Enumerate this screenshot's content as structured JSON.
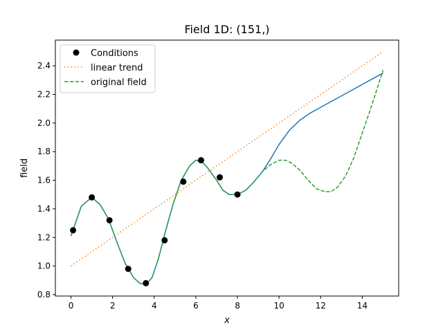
{
  "chart_data": {
    "type": "line",
    "title": "Field 1D: (151,)",
    "xlabel": "x",
    "ylabel": "field",
    "xlim": [
      -0.75,
      15.75
    ],
    "ylim": [
      0.79,
      2.58
    ],
    "xticks": [
      0,
      2,
      4,
      6,
      8,
      10,
      12,
      14
    ],
    "yticks": [
      0.8,
      1.0,
      1.2,
      1.4,
      1.6,
      1.8,
      2.0,
      2.2,
      2.4
    ],
    "grid": false,
    "legend_position": "top-left",
    "legend": [
      {
        "label": "Conditions",
        "style": "marker",
        "color": "#000000"
      },
      {
        "label": "linear trend",
        "style": "dotted",
        "color": "#ff7f0e"
      },
      {
        "label": "original field",
        "style": "dashed",
        "color": "#2ca02c"
      }
    ],
    "series": [
      {
        "style": "solid",
        "color": "#1f77b4",
        "x": [
          0,
          0.5,
          1,
          1.4,
          1.8,
          2.2,
          2.6,
          3.0,
          3.3,
          3.6,
          3.9,
          4.2,
          4.5,
          4.9,
          5.3,
          5.7,
          6.0,
          6.3,
          6.6,
          7.0,
          7.3,
          7.6,
          8.0,
          8.4,
          8.8,
          9.2,
          9.6,
          10.0,
          10.5,
          11.0,
          11.5,
          12.0,
          12.5,
          13.0,
          13.5,
          14.0,
          14.5,
          15.0
        ],
        "y": [
          1.21,
          1.42,
          1.48,
          1.43,
          1.33,
          1.17,
          1.02,
          0.92,
          0.88,
          0.87,
          0.92,
          1.05,
          1.22,
          1.43,
          1.6,
          1.7,
          1.74,
          1.73,
          1.68,
          1.6,
          1.53,
          1.5,
          1.5,
          1.53,
          1.59,
          1.66,
          1.75,
          1.85,
          1.95,
          2.02,
          2.07,
          2.11,
          2.15,
          2.19,
          2.23,
          2.27,
          2.31,
          2.35
        ]
      },
      {
        "name": "linear trend",
        "style": "dotted",
        "color": "#ff7f0e",
        "x": [
          0,
          15
        ],
        "y": [
          1.0,
          2.5
        ]
      },
      {
        "name": "original field",
        "style": "dashed",
        "color": "#2ca02c",
        "x": [
          0,
          0.5,
          1,
          1.4,
          1.8,
          2.2,
          2.6,
          3.0,
          3.3,
          3.6,
          3.9,
          4.2,
          4.5,
          4.9,
          5.3,
          5.7,
          6.0,
          6.3,
          6.6,
          7.0,
          7.3,
          7.6,
          8.0,
          8.4,
          8.8,
          9.2,
          9.6,
          10.0,
          10.3,
          10.6,
          11.0,
          11.4,
          11.8,
          12.2,
          12.5,
          12.8,
          13.2,
          13.6,
          14.0,
          14.4,
          14.8,
          15.0
        ],
        "y": [
          1.21,
          1.42,
          1.48,
          1.43,
          1.33,
          1.17,
          1.02,
          0.92,
          0.88,
          0.87,
          0.92,
          1.05,
          1.22,
          1.43,
          1.6,
          1.7,
          1.74,
          1.73,
          1.68,
          1.6,
          1.53,
          1.5,
          1.5,
          1.53,
          1.59,
          1.66,
          1.71,
          1.74,
          1.74,
          1.72,
          1.67,
          1.6,
          1.54,
          1.52,
          1.52,
          1.55,
          1.63,
          1.76,
          1.93,
          2.1,
          2.28,
          2.37
        ]
      },
      {
        "name": "Conditions",
        "style": "marker",
        "color": "#000000",
        "x": [
          0.1,
          1.0,
          1.85,
          2.75,
          3.6,
          4.5,
          5.4,
          6.25,
          7.15,
          8.0
        ],
        "y": [
          1.25,
          1.48,
          1.32,
          0.98,
          0.88,
          1.18,
          1.59,
          1.74,
          1.62,
          1.5
        ]
      }
    ]
  }
}
